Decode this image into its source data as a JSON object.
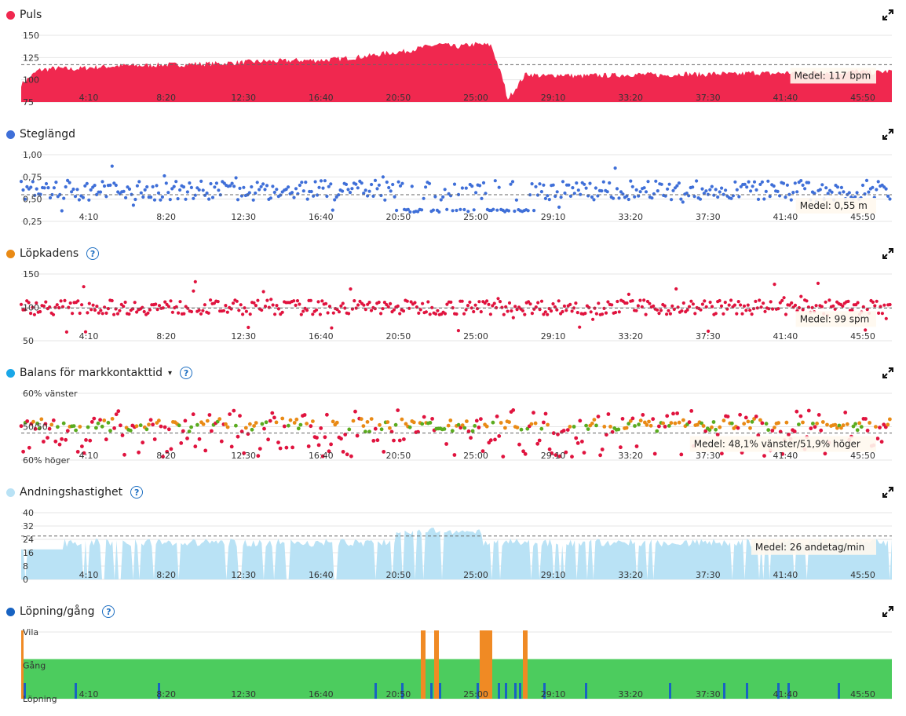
{
  "x_ticks": [
    "4:10",
    "8:20",
    "12:30",
    "16:40",
    "20:50",
    "25:00",
    "29:10",
    "33:20",
    "37:30",
    "41:40",
    "45:50"
  ],
  "chart_data": [
    {
      "id": "puls",
      "type": "area",
      "title": "Puls",
      "color": "#f0284f",
      "y_ticks": [
        "150",
        "125",
        "100",
        "75"
      ],
      "ylim": [
        75,
        150
      ],
      "average_label": "Medel: 117 bpm",
      "average_value": 117,
      "x": [
        0,
        1,
        2,
        3,
        4,
        5,
        6,
        7,
        8,
        9,
        10,
        11,
        12,
        13,
        14,
        15,
        16,
        17,
        18,
        19,
        20,
        21,
        22,
        23,
        24,
        25,
        26,
        27,
        28,
        29,
        30,
        31,
        32,
        33,
        34,
        35,
        36,
        37,
        38,
        39,
        40,
        41,
        42,
        43,
        44,
        45,
        46,
        47,
        48,
        49,
        50
      ],
      "values": [
        95,
        111,
        113,
        112,
        114,
        115,
        116,
        116,
        117,
        117,
        118,
        118,
        119,
        120,
        121,
        121,
        122,
        122,
        123,
        125,
        127,
        130,
        132,
        136,
        140,
        137,
        140,
        139,
        80,
        107,
        104,
        106,
        104,
        105,
        105,
        106,
        106,
        105,
        107,
        106,
        107,
        106,
        108,
        107,
        108,
        108,
        109,
        108,
        110,
        108,
        110
      ]
    },
    {
      "id": "steglangd",
      "type": "scatter",
      "title": "Steglängd",
      "color": "#3f6fd8",
      "y_ticks": [
        "1,00",
        "0,75",
        "0,50",
        "0,25"
      ],
      "ylim": [
        0.25,
        1.0
      ],
      "average_label": "Medel: 0,55 m",
      "average_value": 0.55
    },
    {
      "id": "lopkadens",
      "type": "scatter",
      "title": "Löpkadens",
      "color": "#e0133e",
      "legend_color": "#e98a15",
      "help": "?",
      "y_ticks": [
        "150",
        "100",
        "50"
      ],
      "ylim": [
        50,
        150
      ],
      "average_label": "Medel: 99 spm",
      "average_value": 99
    },
    {
      "id": "balans",
      "type": "scatter",
      "title": "Balans för markkontakttid",
      "color": "#e0133e",
      "legend_color": "#1aa7e8",
      "secondary_colors": [
        "#e98a15",
        "#5aab1f"
      ],
      "help": "?",
      "caret": "▾",
      "y_ticks": [
        "60% vänster",
        "50/50",
        "60% höger"
      ],
      "ylim": [
        -10,
        10
      ],
      "average_label": "Medel: 48,1% vänster/51,9% höger",
      "average_value": -1.9
    },
    {
      "id": "andning",
      "type": "area",
      "title": "Andningshastighet",
      "color": "#b9e2f5",
      "legend_color": "#b9e2f5",
      "help": "?",
      "y_ticks": [
        "40",
        "32",
        "24",
        "16",
        "8",
        "0"
      ],
      "ylim": [
        0,
        40
      ],
      "average_label": "Medel: 26 andetag/min",
      "average_value": 26
    },
    {
      "id": "lopning",
      "type": "bar",
      "title": "Löpning/gång",
      "color": "#4ccc5e",
      "legend_color": "#1863c2",
      "secondary_colors": [
        "#f08a24",
        "#1863c2"
      ],
      "help": "?",
      "categories": [
        "Vila",
        "Gång",
        "Löpning"
      ]
    }
  ]
}
